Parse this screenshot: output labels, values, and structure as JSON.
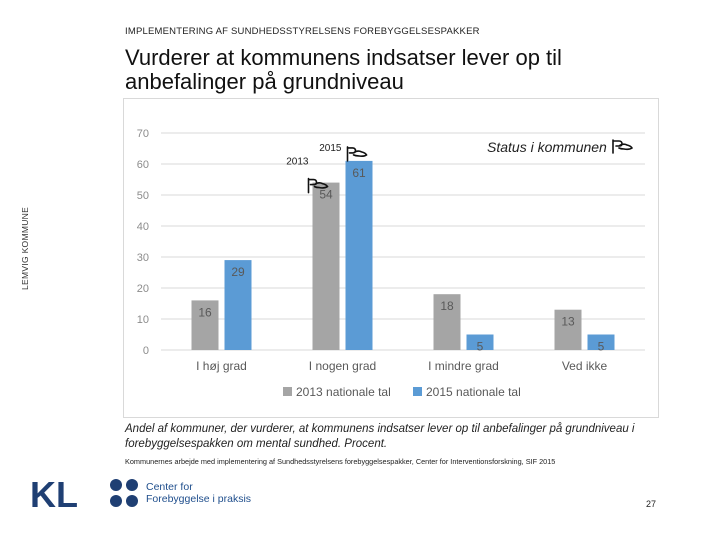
{
  "header": {
    "label": "IMPLEMENTERING AF SUNDHEDSSTYRELSENS FOREBYGGELSESPAKKER"
  },
  "title": "Vurderer at kommunens indsatser lever op til anbefalinger på grundniveau",
  "side_label": "LEMVIG KOMMUNE",
  "status_label": "Status i kommunen",
  "chart_data": {
    "type": "bar",
    "categories": [
      "I høj grad",
      "I nogen grad",
      "I mindre grad",
      "Ved ikke"
    ],
    "series": [
      {
        "name": "2013 nationale tal",
        "values": [
          16,
          54,
          18,
          13
        ],
        "color": "#a5a5a5"
      },
      {
        "name": "2015 nationale tal",
        "values": [
          29,
          61,
          5,
          5
        ],
        "color": "#5b9bd5"
      }
    ],
    "yticks": [
      0,
      10,
      20,
      30,
      40,
      50,
      60,
      70
    ],
    "ylim": [
      0,
      70
    ],
    "legend_position": "bottom",
    "annotations": [
      {
        "text": "2013",
        "category": "I nogen grad",
        "series": "2013 nationale tal"
      },
      {
        "text": "2015",
        "category": "I nogen grad",
        "series": "2015 nationale tal"
      }
    ]
  },
  "caption": "Andel af kommuner, der vurderer, at kommunens indsatser lever op til anbefalinger på grundniveau i forebyggelsespakken om mental sundhed. Procent.",
  "source": "Kommunernes arbejde med implementering af Sundhedsstyrelsens forebyggelsespakker, Center for Interventionsforskning, SIF 2015",
  "logos": {
    "kl": "KL",
    "cfp_line1": "Center for",
    "cfp_line2": "Forebyggelse i praksis"
  },
  "page_number": "27"
}
